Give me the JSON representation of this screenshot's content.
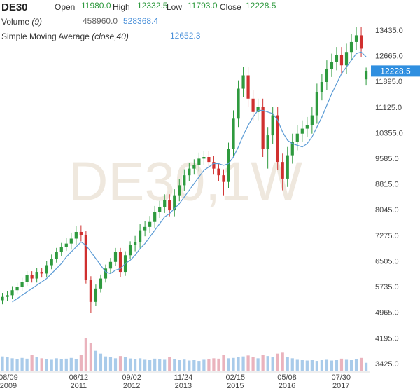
{
  "chart_data": {
    "type": "candlestick",
    "title": "DE30",
    "ohlc_legend": [
      {
        "label": "Open",
        "value": "11980.0"
      },
      {
        "label": "High",
        "value": "12332.5"
      },
      {
        "label": "Low",
        "value": "11793.0"
      },
      {
        "label": "Close",
        "value": "12228.5"
      }
    ],
    "volume_legend": {
      "label": "Volume",
      "param": "(9)",
      "value": "458960.0",
      "average": "528368.4"
    },
    "sma_legend": {
      "label": "Simple Moving Average",
      "param": "(close,40)",
      "value": "12652.3"
    },
    "watermark": "DE30,1W",
    "last_price": {
      "value": 12228.5,
      "label": "12228.5",
      "color": "#2f8fe0"
    },
    "up_color": "#2e9a3e",
    "down_color": "#d0302f",
    "open": [
      5350,
      5450,
      5500,
      5650,
      5750,
      5900,
      6100,
      6000,
      6200,
      6150,
      6400,
      6600,
      6800,
      6950,
      7050,
      7200,
      7400,
      7300,
      5950,
      5300,
      5700,
      6000,
      6300,
      6500,
      6800,
      6200,
      6700,
      7000,
      7100,
      7450,
      7550,
      7700,
      8000,
      8150,
      8350,
      8050,
      8500,
      8800,
      9100,
      9300,
      9400,
      9600,
      9650,
      9500,
      9300,
      9100,
      8900,
      9900,
      10800,
      11700,
      12100,
      11400,
      11000,
      11150,
      9900,
      10300,
      10900,
      9500,
      9000,
      9700,
      10100,
      10350,
      10500,
      10600,
      10900,
      11600,
      11900,
      12300,
      12500,
      12700,
      12400,
      12800,
      13100,
      13300,
      11980
    ],
    "high": [
      5570,
      5620,
      5770,
      5870,
      6020,
      6220,
      6220,
      6320,
      6320,
      6520,
      6720,
      6920,
      7070,
      7230,
      7380,
      7580,
      7600,
      7420,
      6070,
      5820,
      6120,
      6420,
      6620,
      6920,
      6920,
      6820,
      7120,
      7280,
      7630,
      7730,
      7880,
      8180,
      8330,
      8530,
      8530,
      8680,
      8980,
      9280,
      9480,
      9580,
      9780,
      9830,
      9830,
      9680,
      9480,
      9280,
      10080,
      11050,
      11950,
      12360,
      12350,
      11650,
      11400,
      11400,
      10550,
      11150,
      11150,
      9750,
      9950,
      10350,
      10600,
      10750,
      10850,
      11150,
      11850,
      12150,
      12550,
      12750,
      12950,
      12950,
      13050,
      13350,
      13560,
      13550,
      12332.5
    ],
    "low": [
      5230,
      5330,
      5380,
      5530,
      5630,
      5780,
      5880,
      5880,
      6030,
      6030,
      6280,
      6480,
      6680,
      6830,
      6870,
      7020,
      7120,
      5850,
      4980,
      5180,
      5580,
      5880,
      6180,
      6380,
      6050,
      6080,
      6580,
      6820,
      6920,
      7270,
      7370,
      7520,
      7820,
      7970,
      7870,
      7870,
      8320,
      8620,
      8920,
      9120,
      9220,
      9420,
      9320,
      9120,
      8920,
      8500,
      8720,
      9650,
      10550,
      11450,
      11150,
      10750,
      10750,
      9650,
      9300,
      10050,
      9250,
      8650,
      8750,
      9450,
      9850,
      10100,
      10250,
      10350,
      10650,
      11350,
      11650,
      12050,
      12250,
      12150,
      12150,
      12550,
      12850,
      12650,
      11793
    ],
    "close": [
      5450,
      5500,
      5650,
      5750,
      5900,
      6100,
      6000,
      6200,
      6150,
      6400,
      6600,
      6800,
      6950,
      7050,
      7200,
      7400,
      7300,
      5950,
      5300,
      5700,
      6000,
      6300,
      6500,
      6800,
      6200,
      6700,
      7000,
      7100,
      7450,
      7550,
      7700,
      8000,
      8150,
      8350,
      8050,
      8500,
      8800,
      9100,
      9300,
      9400,
      9600,
      9650,
      9500,
      9300,
      9100,
      8900,
      9900,
      10800,
      11700,
      12100,
      11400,
      11000,
      11150,
      9900,
      10300,
      10900,
      9500,
      9000,
      9700,
      10100,
      10350,
      10500,
      10600,
      10900,
      11600,
      11900,
      12300,
      12500,
      12700,
      12400,
      12800,
      13100,
      13300,
      12900,
      12228.5
    ],
    "volume": {
      "up_color": "#a9cbea",
      "down_color": "#eab3bd",
      "values": [
        800000,
        750000,
        700000,
        650000,
        720000,
        680000,
        900000,
        760000,
        700000,
        650000,
        620000,
        700000,
        640000,
        680000,
        720000,
        660000,
        900000,
        1800000,
        1500000,
        1100000,
        950000,
        800000,
        750000,
        700000,
        820000,
        760000,
        690000,
        640000,
        700000,
        620000,
        600000,
        680000,
        640000,
        620000,
        760000,
        650000,
        600000,
        630000,
        580000,
        600000,
        560000,
        620000,
        640000,
        700000,
        680000,
        900000,
        700000,
        720000,
        760000,
        800000,
        850000,
        780000,
        700000,
        900000,
        820000,
        750000,
        950000,
        1000000,
        780000,
        700000,
        620000,
        600000,
        580000,
        600000,
        560000,
        600000,
        620000,
        580000,
        600000,
        680000,
        620000,
        600000,
        640000,
        720000,
        458960
      ]
    },
    "sma": {
      "color": "#5b9bd5",
      "values": [
        null,
        null,
        5300,
        5400,
        5500,
        5600,
        5700,
        5800,
        5900,
        6000,
        6150,
        6300,
        6450,
        6650,
        6800,
        6950,
        7100,
        7000,
        6800,
        6600,
        6400,
        6200,
        6150,
        6250,
        6300,
        6450,
        6550,
        6700,
        6900,
        7050,
        7250,
        7450,
        7650,
        7850,
        7950,
        8100,
        8250,
        8450,
        8650,
        8850,
        9050,
        9250,
        9350,
        9450,
        9450,
        9400,
        9450,
        9650,
        9950,
        10300,
        10600,
        10850,
        11050,
        11050,
        11000,
        10950,
        10750,
        10400,
        10150,
        10050,
        10000,
        9950,
        10050,
        10250,
        10550,
        10850,
        11200,
        11550,
        11850,
        12150,
        12350,
        12550,
        12750,
        12800,
        12652.3
      ]
    },
    "xlim": [
      -0.5,
      74.7
    ],
    "xticks": [
      {
        "value": 1.2,
        "label": "08/09 2009"
      },
      {
        "value": 15.5,
        "label": "06/12 2011"
      },
      {
        "value": 26.3,
        "label": "09/02 2012"
      },
      {
        "value": 36.8,
        "label": "11/24 2013"
      },
      {
        "value": 47.4,
        "label": "02/15 2015"
      },
      {
        "value": 57.9,
        "label": "05/08 2016"
      },
      {
        "value": 68.9,
        "label": "07/30 2017"
      }
    ],
    "ylim": [
      3215,
      13940
    ],
    "yticks": [
      {
        "value": 3425,
        "label": "3425.0"
      },
      {
        "value": 4195,
        "label": "4195.0"
      },
      {
        "value": 4965,
        "label": "4965.0"
      },
      {
        "value": 5735,
        "label": "5735.0"
      },
      {
        "value": 6505,
        "label": "6505.0"
      },
      {
        "value": 7275,
        "label": "7275.0"
      },
      {
        "value": 8045,
        "label": "8045.0"
      },
      {
        "value": 8815,
        "label": "8815.0"
      },
      {
        "value": 9585,
        "label": "9585.0"
      },
      {
        "value": 10355,
        "label": "10355.0"
      },
      {
        "value": 11125,
        "label": "11125.0"
      },
      {
        "value": 11895,
        "label": "11895.0"
      },
      {
        "value": 12665,
        "label": "12665.0"
      },
      {
        "value": 13435,
        "label": "13435.0"
      }
    ]
  }
}
